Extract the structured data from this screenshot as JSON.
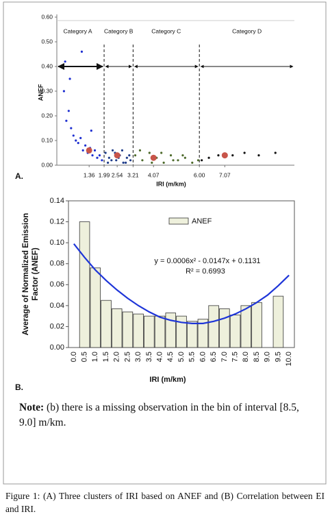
{
  "chart_data": [
    {
      "type": "scatter",
      "panel_label": "A.",
      "ylabel": "ANEF",
      "xlabel": "IRI (m/km)",
      "xlim": [
        0,
        10
      ],
      "ylim": [
        0,
        0.6
      ],
      "yticks": [
        {
          "value": 0,
          "label": "0.00"
        },
        {
          "value": 0.1,
          "label": "0.10"
        },
        {
          "value": 0.2,
          "label": "0.20"
        },
        {
          "value": 0.3,
          "label": "0.30"
        },
        {
          "value": 0.4,
          "label": "0.40"
        },
        {
          "value": 0.5,
          "label": "0.50"
        },
        {
          "value": 0.6,
          "label": "0.60"
        }
      ],
      "xticks": [
        1.36,
        1.99,
        2.54,
        3.21,
        4.07,
        {
          "value": 6,
          "label": "6.00"
        },
        7.07
      ],
      "regions": [
        "Category A",
        "Category B",
        "Category C",
        "Category D"
      ],
      "boundaries": [
        1.99,
        3.21,
        6
      ],
      "arrow_y": 0.4,
      "series": [
        {
          "color": "#1e2fd0",
          "x": [
            0.3,
            0.5,
            0.7,
            0.9,
            1.1,
            1.3,
            1.5,
            1.7,
            1.9,
            0.4,
            0.8,
            1.2,
            1.6,
            0.6,
            1.0,
            1.4,
            1.8,
            0.35,
            0.55,
            1.05,
            1.45
          ],
          "values": [
            0.3,
            0.22,
            0.12,
            0.09,
            0.06,
            0.05,
            0.04,
            0.03,
            0.02,
            0.18,
            0.1,
            0.08,
            0.06,
            0.15,
            0.11,
            0.07,
            0.04,
            0.42,
            0.35,
            0.46,
            0.14
          ]
        },
        {
          "color": "#1f3d8a",
          "x": [
            2.05,
            2.2,
            2.35,
            2.5,
            2.65,
            2.8,
            2.95,
            3.1,
            2.15,
            2.45,
            2.75,
            3.05,
            2.3,
            2.6,
            2.9
          ],
          "values": [
            0.05,
            0.03,
            0.06,
            0.02,
            0.04,
            0.01,
            0.03,
            0.02,
            0.01,
            0.05,
            0.06,
            0.04,
            0.02,
            0.03,
            0.01
          ]
        },
        {
          "color": "#4e6b2c",
          "x": [
            3.3,
            3.6,
            3.9,
            4.2,
            4.5,
            4.8,
            5.1,
            5.4,
            5.7,
            5.95,
            3.5,
            4.0,
            4.4,
            4.9,
            5.3
          ],
          "values": [
            0.04,
            0.02,
            0.05,
            0.03,
            0.01,
            0.04,
            0.02,
            0.03,
            0.01,
            0.02,
            0.06,
            0.01,
            0.05,
            0.02,
            0.04
          ]
        },
        {
          "color": "#111111",
          "x": [
            6.1,
            6.4,
            6.8,
            7.4,
            7.9,
            8.5,
            9.2
          ],
          "values": [
            0.02,
            0.03,
            0.04,
            0.04,
            0.05,
            0.04,
            0.05
          ]
        },
        {
          "color": "#c8554a",
          "x": [
            1.36,
            2.54,
            4.07,
            7.07
          ],
          "values": [
            0.06,
            0.04,
            0.03,
            0.04
          ]
        }
      ]
    },
    {
      "type": "bar",
      "panel_label": "B.",
      "ylabel": [
        "Average of Normalized Emission",
        "Factor  (ANEF)"
      ],
      "xlabel": "IRI (m/km)",
      "ylim": [
        0,
        0.14
      ],
      "yticks": [
        {
          "value": 0,
          "label": "0.00"
        },
        {
          "value": 0.02,
          "label": "0.02"
        },
        {
          "value": 0.04,
          "label": "0.04"
        },
        {
          "value": 0.06,
          "label": "0.06"
        },
        {
          "value": 0.08,
          "label": "0.08"
        },
        {
          "value": 0.1,
          "label": "0.10"
        },
        {
          "value": 0.12,
          "label": "0.12"
        },
        {
          "value": 0.14,
          "label": "0.14"
        }
      ],
      "categories": [
        "0.0",
        "0.5",
        "1.0",
        "1.5",
        "2.0",
        "2.5",
        "3.0",
        "3.5",
        "4.0",
        "4.5",
        "5.0",
        "5.5",
        "6.0",
        "6.5",
        "7.0",
        "7.5",
        "8.0",
        "8.5",
        "9.0",
        "9.5",
        "10.0"
      ],
      "series": [
        {
          "name": "ANEF",
          "color": "#eef0dc",
          "values": [
            null,
            0.12,
            0.076,
            0.045,
            0.037,
            0.034,
            0.032,
            0.03,
            0.03,
            0.033,
            0.03,
            0.025,
            0.027,
            0.04,
            0.037,
            0.031,
            0.04,
            0.043,
            null,
            0.049,
            null
          ]
        }
      ],
      "fit": {
        "color": "#1e35d8",
        "equation": "y = 0.0006x² - 0.0147x + 0.1131",
        "r2": "R² = 0.6993",
        "values": [
          0.099,
          0.086,
          0.074,
          0.064,
          0.055,
          0.047,
          0.04,
          0.034,
          0.029,
          0.026,
          0.024,
          0.023,
          0.023,
          0.025,
          0.028,
          0.032,
          0.037,
          0.043,
          0.05,
          0.059,
          0.069
        ]
      }
    }
  ],
  "note": {
    "lead": "Note:",
    "text": " (b) there is a missing observation in the bin of interval [8.5, 9.0] m/km."
  },
  "caption": "Figure 1: (A) Three clusters of IRI based on ANEF and (B) Correlation between EI and IRI."
}
